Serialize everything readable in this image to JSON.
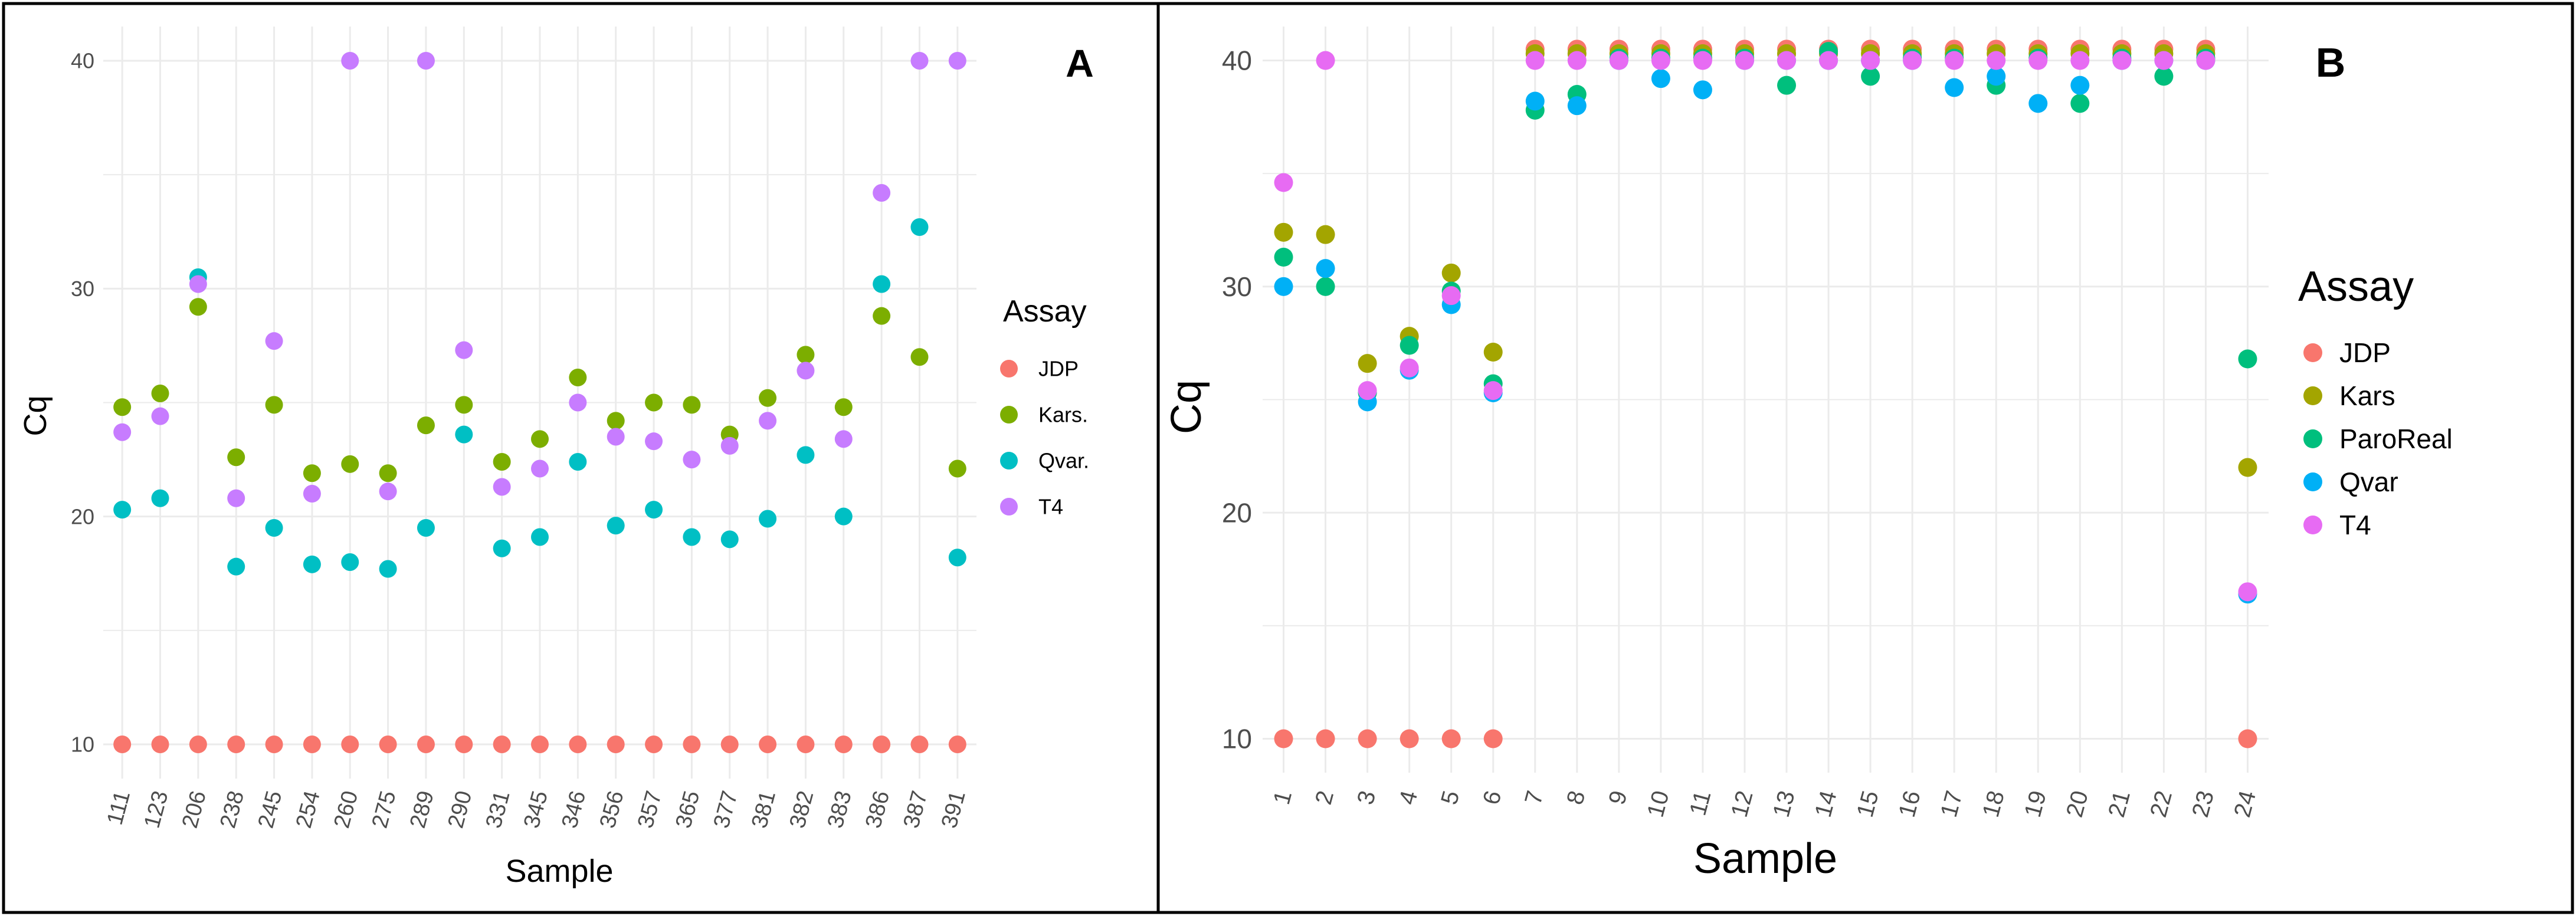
{
  "colors": {
    "JDP": "#F8766D",
    "Kars": "#7CAE00",
    "Kars_B": "#A3A500",
    "ParoReal": "#00BF7D",
    "Qvar": "#00BFC4",
    "Qvar_B": "#00B0F6",
    "T4": "#C77CFF",
    "T4_B": "#E76BF3",
    "grid": "#EBEBEB",
    "axis_text": "#4D4D4D",
    "border": "#000000"
  },
  "chart_data": [
    {
      "panel_label": "A",
      "type": "scatter",
      "xlabel": "Sample",
      "ylabel": "Cq",
      "ylim": [
        8.5,
        41.5
      ],
      "yticks": [
        10,
        20,
        30,
        40
      ],
      "grid": true,
      "legend_placement": "right",
      "legend_title": "Assay",
      "categories": [
        "111",
        "123",
        "206",
        "238",
        "245",
        "254",
        "260",
        "275",
        "289",
        "290",
        "331",
        "345",
        "346",
        "356",
        "357",
        "365",
        "377",
        "381",
        "382",
        "383",
        "386",
        "387",
        "391"
      ],
      "series": [
        {
          "name": "JDP",
          "color_key": "JDP",
          "values": [
            10,
            10,
            10,
            10,
            10,
            10,
            10,
            10,
            10,
            10,
            10,
            10,
            10,
            10,
            10,
            10,
            10,
            10,
            10,
            10,
            10,
            10,
            10
          ]
        },
        {
          "name": "Kars.",
          "color_key": "Kars",
          "values": [
            24.8,
            25.4,
            29.2,
            22.6,
            24.9,
            21.9,
            22.3,
            21.9,
            24.0,
            24.9,
            22.4,
            23.4,
            26.1,
            24.2,
            25.0,
            24.9,
            23.6,
            25.2,
            27.1,
            24.8,
            28.8,
            27.0,
            22.1
          ]
        },
        {
          "name": "Qvar.",
          "color_key": "Qvar",
          "values": [
            20.3,
            20.8,
            30.5,
            17.8,
            19.5,
            17.9,
            18.0,
            17.7,
            19.5,
            23.6,
            18.6,
            19.1,
            22.4,
            19.6,
            20.3,
            19.1,
            19.0,
            19.9,
            22.7,
            20.0,
            30.2,
            32.7,
            18.2
          ]
        },
        {
          "name": "T4",
          "color_key": "T4",
          "values": [
            23.7,
            24.4,
            30.2,
            20.8,
            27.7,
            21.0,
            40,
            21.1,
            40,
            27.3,
            21.3,
            22.1,
            25.0,
            23.5,
            23.3,
            22.5,
            23.1,
            24.2,
            26.4,
            23.4,
            34.2,
            40,
            40
          ]
        }
      ]
    },
    {
      "panel_label": "B",
      "type": "scatter",
      "xlabel": "Sample",
      "ylabel": "Cq",
      "ylim": [
        8.5,
        41.5
      ],
      "yticks": [
        10,
        20,
        30,
        40
      ],
      "grid": true,
      "legend_placement": "right",
      "legend_title": "Assay",
      "categories": [
        "1",
        "2",
        "3",
        "4",
        "5",
        "6",
        "7",
        "8",
        "9",
        "10",
        "11",
        "12",
        "13",
        "14",
        "15",
        "16",
        "17",
        "18",
        "19",
        "20",
        "21",
        "22",
        "23",
        "24"
      ],
      "series": [
        {
          "name": "JDP",
          "color_key": "JDP",
          "values": [
            10,
            10,
            10,
            10,
            10,
            10,
            40.5,
            40.5,
            40.5,
            40.5,
            40.5,
            40.5,
            40.5,
            40.5,
            40.5,
            40.5,
            40.5,
            40.5,
            40.5,
            40.5,
            40.5,
            40.5,
            40.5,
            10
          ]
        },
        {
          "name": "Kars",
          "color_key": "Kars_B",
          "values": [
            32.4,
            32.3,
            26.6,
            27.8,
            30.6,
            27.1,
            40.3,
            40.3,
            40.3,
            40.3,
            40.3,
            40.3,
            40.3,
            40.3,
            40.3,
            40.3,
            40.3,
            40.3,
            40.3,
            40.3,
            40.3,
            40.3,
            40.3,
            22.0
          ]
        },
        {
          "name": "ParoReal",
          "color_key": "ParoReal",
          "values": [
            31.3,
            30.0,
            25.3,
            27.4,
            29.8,
            25.7,
            37.8,
            38.5,
            40.1,
            40.1,
            40.1,
            40.1,
            38.9,
            40.4,
            39.3,
            40.1,
            40.1,
            38.9,
            40.1,
            38.1,
            40.1,
            39.3,
            40.1,
            26.8
          ]
        },
        {
          "name": "Qvar",
          "color_key": "Qvar_B",
          "values": [
            30.0,
            30.8,
            24.9,
            26.3,
            29.2,
            25.3,
            38.2,
            38.0,
            40.0,
            39.2,
            38.7,
            40.0,
            40.0,
            40.0,
            40.0,
            40.0,
            38.8,
            39.3,
            38.1,
            38.9,
            40.0,
            40.0,
            40.0,
            16.4
          ]
        },
        {
          "name": "T4",
          "color_key": "T4_B",
          "values": [
            34.6,
            40,
            25.4,
            26.4,
            29.6,
            25.4,
            40,
            40,
            40,
            40,
            40,
            40,
            40,
            40,
            40,
            40,
            40,
            40,
            40,
            40,
            40,
            40,
            40,
            16.5
          ]
        }
      ]
    }
  ]
}
